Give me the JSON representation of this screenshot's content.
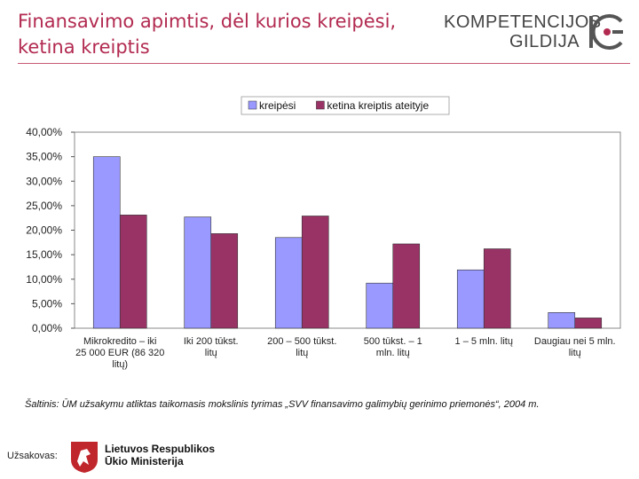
{
  "slide": {
    "title_line1": "Finansavimo apimtis, dėl kurios kreipėsi,",
    "title_line2": "ketina kreiptis",
    "source": "Šaltinis: ŪM užsakymu atliktas taikomasis mokslinis tyrimas „SVV finansavimo galimybių gerinimo priemonės“, 2004 m.",
    "client_label": "Užsakovas:",
    "ministry_line1": "Lietuvos Respublikos",
    "ministry_line2": "Ūkio Ministerija"
  },
  "logo": {
    "line1": "KOMPETENCIJOS",
    "line2": "GILDIJA",
    "icon": "kompetencijos-gildija-logo-icon"
  },
  "colors": {
    "title": "#b22a50",
    "series1": "#9999ff",
    "series2": "#993366",
    "plot_bg": "#ffffff"
  },
  "chart_data": {
    "type": "bar",
    "title": "",
    "xlabel": "",
    "ylabel": "",
    "categories": [
      "Mikrokredito – iki 25 000 EUR (86 320 litų)",
      "Iki 200 tūkst. litų",
      "200 – 500 tūkst. litų",
      "500 tūkst. – 1 mln. litų",
      "1 – 5 mln. litų",
      "Daugiau nei 5 mln. litų"
    ],
    "series": [
      {
        "name": "kreipėsi",
        "values": [
          35.0,
          22.7,
          18.5,
          9.2,
          11.9,
          3.2
        ]
      },
      {
        "name": "ketina kreiptis ateityje",
        "values": [
          23.1,
          19.3,
          22.9,
          17.2,
          16.2,
          2.1
        ]
      }
    ],
    "ylim": [
      0,
      40
    ],
    "yticks": [
      "0,00%",
      "5,00%",
      "10,00%",
      "15,00%",
      "20,00%",
      "25,00%",
      "30,00%",
      "35,00%",
      "40,00%"
    ],
    "legend_position": "top",
    "grid": false
  }
}
